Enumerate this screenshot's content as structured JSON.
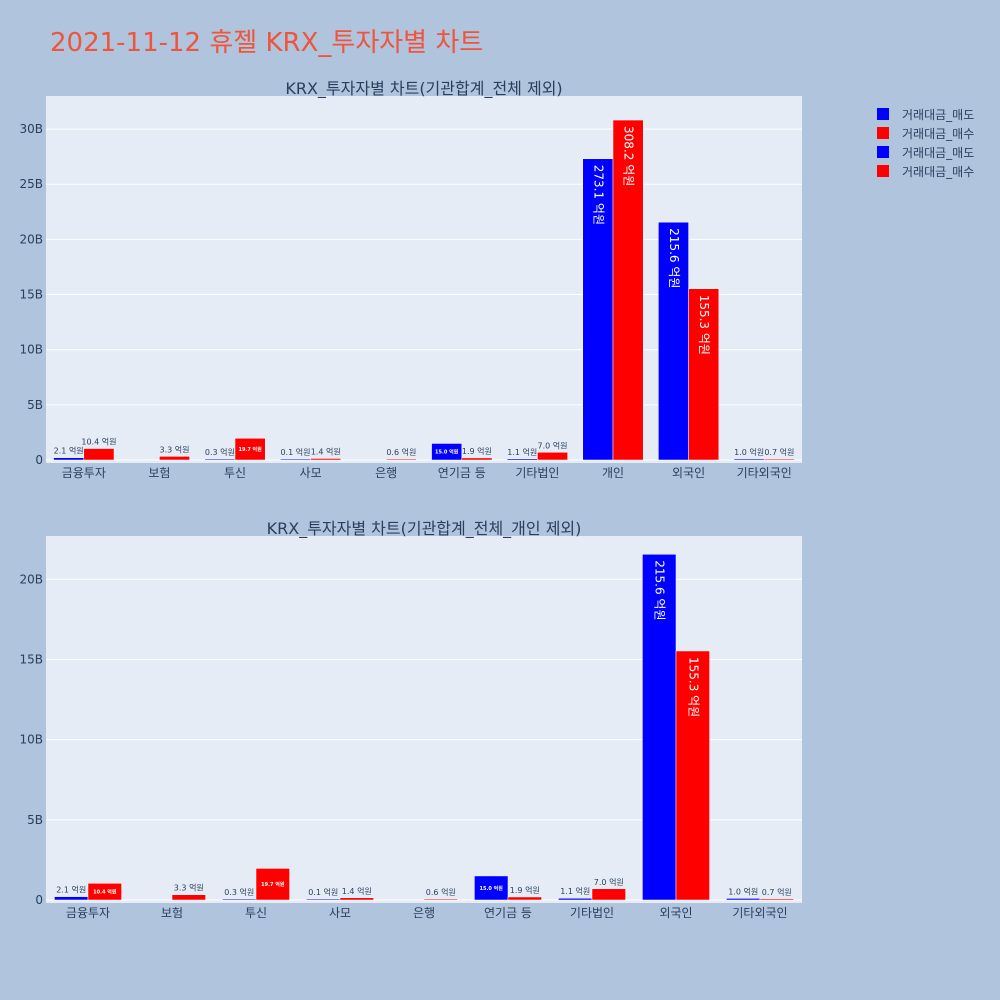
{
  "page_title": "2021-11-12 휴젤 KRX_투자자별 차트",
  "colors": {
    "sell": "#0000ff",
    "buy": "#ff0000",
    "title": "#ef553b",
    "text": "#2a3f5f",
    "plot_bg": "#e5ecf6",
    "paper_bg": "#b0c4de",
    "grid": "#ffffff"
  },
  "legend": {
    "placement": "top-right",
    "items": [
      "거래대금_매도",
      "거래대금_매수",
      "거래대금_매도",
      "거래대금_매수"
    ]
  },
  "chart_data": [
    {
      "type": "bar",
      "title": "KRX_투자자별 차트(기관합계_전체 제외)",
      "xlabel": "",
      "ylabel": "",
      "ylim": [
        0,
        33
      ],
      "y_ticks": [
        0,
        5,
        10,
        15,
        20,
        25,
        30
      ],
      "y_tick_labels": [
        "0",
        "5B",
        "10B",
        "15B",
        "20B",
        "25B",
        "30B"
      ],
      "categories": [
        "금융투자",
        "보험",
        "투신",
        "사모",
        "은행",
        "연기금 등",
        "기타법인",
        "개인",
        "외국인",
        "기타외국인"
      ],
      "series": [
        {
          "name": "거래대금_매도",
          "color": "#0000ff",
          "values": [
            0.21,
            0.0,
            0.03,
            0.01,
            0.0,
            1.5,
            0.11,
            27.31,
            21.56,
            0.1
          ],
          "labels": [
            "2.1 억원",
            "",
            "0.3 억원",
            "0.1 억원",
            "",
            "15.0 억원",
            "1.1 억원",
            "273.1 억원",
            "215.6 억원",
            "1.0 억원"
          ]
        },
        {
          "name": "거래대금_매수",
          "color": "#ff0000",
          "values": [
            1.04,
            0.33,
            1.97,
            0.14,
            0.06,
            0.19,
            0.7,
            30.82,
            15.53,
            0.07
          ],
          "labels": [
            "10.4 억원",
            "3.3 억원",
            "19.7 억원",
            "1.4 억원",
            "0.6 억원",
            "1.9 억원",
            "7.0 억원",
            "308.2 억원",
            "155.3 억원",
            "0.7 억원"
          ]
        }
      ]
    },
    {
      "type": "bar",
      "title": "KRX_투자자별 차트(기관합계_전체_개인 제외)",
      "xlabel": "",
      "ylabel": "",
      "ylim": [
        0,
        22.7
      ],
      "y_ticks": [
        0,
        5,
        10,
        15,
        20
      ],
      "y_tick_labels": [
        "0",
        "5B",
        "10B",
        "15B",
        "20B"
      ],
      "categories": [
        "금융투자",
        "보험",
        "투신",
        "사모",
        "은행",
        "연기금 등",
        "기타법인",
        "외국인",
        "기타외국인"
      ],
      "series": [
        {
          "name": "거래대금_매도",
          "color": "#0000ff",
          "values": [
            0.21,
            0.0,
            0.03,
            0.01,
            0.0,
            1.5,
            0.11,
            21.56,
            0.1
          ],
          "labels": [
            "2.1 억원",
            "",
            "0.3 억원",
            "0.1 억원",
            "",
            "15.0 억원",
            "1.1 억원",
            "215.6 억원",
            "1.0 억원"
          ]
        },
        {
          "name": "거래대금_매수",
          "color": "#ff0000",
          "values": [
            1.04,
            0.33,
            1.97,
            0.14,
            0.06,
            0.19,
            0.7,
            15.53,
            0.07
          ],
          "labels": [
            "10.4 억원",
            "3.3 억원",
            "19.7 억원",
            "1.4 억원",
            "0.6 억원",
            "1.9 억원",
            "7.0 억원",
            "155.3 억원",
            "0.7 억원"
          ]
        }
      ]
    }
  ]
}
